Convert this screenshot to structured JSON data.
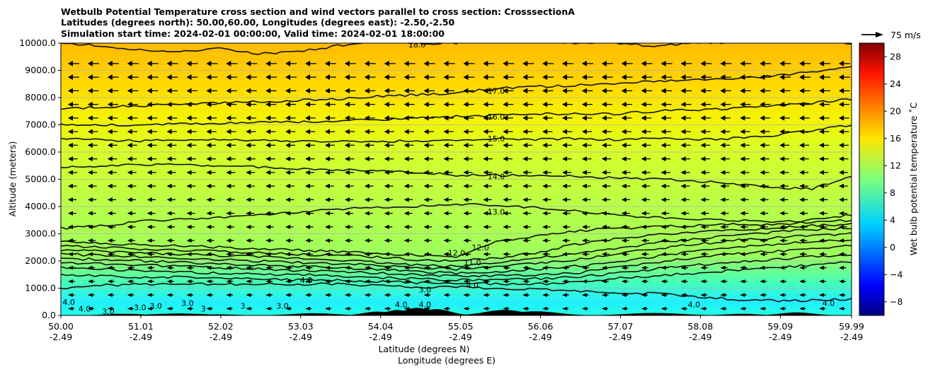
{
  "chart_data": {
    "type": "contour",
    "title_lines": [
      "Wetbulb Potential Temperature cross section and wind vectors parallel to cross section: CrosssectionA",
      "Latitudes (degrees north): 50.00,60.00, Longitudes (degrees east): -2.50,-2.50",
      "Simulation start time: 2024-02-01 00:00:00, Valid time: 2024-02-01 18:00:00"
    ],
    "xlabel_lines": [
      "Latitude (degrees N)",
      "Longitude (degrees E)"
    ],
    "ylabel": "Altitude (meters)",
    "x_ticks": [
      {
        "lat": 50.0,
        "lat_label": "50.00",
        "lon_label": "-2.49"
      },
      {
        "lat": 51.01,
        "lat_label": "51.01",
        "lon_label": "-2.49"
      },
      {
        "lat": 52.02,
        "lat_label": "52.02",
        "lon_label": "-2.49"
      },
      {
        "lat": 53.03,
        "lat_label": "53.03",
        "lon_label": "-2.49"
      },
      {
        "lat": 54.04,
        "lat_label": "54.04",
        "lon_label": "-2.49"
      },
      {
        "lat": 55.05,
        "lat_label": "55.05",
        "lon_label": "-2.49"
      },
      {
        "lat": 56.06,
        "lat_label": "56.06",
        "lon_label": "-2.49"
      },
      {
        "lat": 57.07,
        "lat_label": "57.07",
        "lon_label": "-2.49"
      },
      {
        "lat": 58.08,
        "lat_label": "58.08",
        "lon_label": "-2.49"
      },
      {
        "lat": 59.09,
        "lat_label": "59.09",
        "lon_label": "-2.49"
      },
      {
        "lat": 59.99,
        "lat_label": "59.99",
        "lon_label": "-2.49"
      }
    ],
    "xlim": [
      50.0,
      59.99
    ],
    "y_ticks": [
      0,
      1000,
      2000,
      3000,
      4000,
      5000,
      6000,
      7000,
      8000,
      9000,
      10000
    ],
    "y_tick_labels": [
      "0.0",
      "1000.0",
      "2000.0",
      "3000.0",
      "4000.0",
      "5000.0",
      "6000.0",
      "7000.0",
      "8000.0",
      "9000.0",
      "10000.0"
    ],
    "ylim": [
      0,
      10000
    ],
    "grid": "horizontal",
    "colorbar": {
      "label": "Wet bulb potential temperature ˚C",
      "range": [
        -10,
        30
      ],
      "ticks": [
        -8,
        -4,
        0,
        4,
        8,
        12,
        16,
        20,
        24,
        28
      ],
      "tick_labels": [
        "−8",
        "−4",
        "0",
        "4",
        "8",
        "12",
        "16",
        "20",
        "24",
        "28"
      ],
      "colormap": "jet"
    },
    "quiver_key": {
      "label": "75 m/s",
      "value": 75
    },
    "wind_direction": "toward south (decreasing latitude)",
    "contour_levels": [
      {
        "value": 18,
        "heights_m": [
          10000,
          9900,
          9750,
          9700,
          9800,
          9600,
          9700,
          9900,
          10100,
          10000,
          10000,
          10100,
          10100,
          10000,
          10000,
          9900,
          10000,
          10000,
          10100,
          10100,
          10000
        ]
      },
      {
        "value": 17,
        "heights_m": [
          7600,
          7650,
          7700,
          7750,
          7800,
          7850,
          7900,
          7950,
          8050,
          8100,
          8150,
          8350,
          8400,
          8450,
          8500,
          8600,
          8650,
          8700,
          8800,
          8950,
          9100
        ]
      },
      {
        "value": 16,
        "heights_m": [
          7000,
          7000,
          7000,
          7050,
          7050,
          7100,
          7100,
          7150,
          7200,
          7250,
          7300,
          7350,
          7400,
          7400,
          7400,
          7500,
          7550,
          7600,
          7700,
          7800,
          7950
        ]
      },
      {
        "value": 15,
        "heights_m": [
          6500,
          6450,
          6400,
          6450,
          6450,
          6450,
          6400,
          6400,
          6400,
          6400,
          6450,
          6500,
          6450,
          6500,
          6450,
          6500,
          6450,
          6500,
          6600,
          6800,
          7000
        ]
      },
      {
        "value": 14,
        "heights_m": [
          5450,
          5500,
          5550,
          5550,
          5500,
          5450,
          5400,
          5350,
          5300,
          5250,
          5150,
          5150,
          5150,
          5100,
          5050,
          5000,
          4950,
          4850,
          4700,
          4650,
          5100
        ]
      },
      {
        "value": 13,
        "heights_m": [
          3200,
          3300,
          3450,
          3550,
          3600,
          3700,
          3800,
          3900,
          3950,
          4000,
          4100,
          4050,
          3950,
          3850,
          3700,
          3600,
          3550,
          3500,
          3400,
          3500,
          3700
        ]
      },
      {
        "value": 12,
        "heights_m": [
          2700,
          2650,
          2600,
          2550,
          2500,
          2450,
          2400,
          2350,
          2300,
          2200,
          2150,
          2700,
          2900,
          3100,
          3200,
          3250,
          3300,
          3350,
          3350,
          3400,
          3500
        ]
      },
      {
        "value": 11,
        "heights_m": [
          2550,
          2500,
          2450,
          2400,
          2350,
          2300,
          2250,
          2200,
          2150,
          2050,
          2000,
          2100,
          2300,
          2600,
          2800,
          2950,
          3050,
          3150,
          3200,
          3300,
          3350
        ]
      },
      {
        "value": 10,
        "heights_m": [
          2400,
          2350,
          2300,
          2250,
          2200,
          2150,
          2100,
          2050,
          1950,
          1850,
          1800,
          1950,
          2100,
          2250,
          2450,
          2650,
          2800,
          2950,
          3050,
          3150,
          3200
        ]
      },
      {
        "value": 9,
        "heights_m": [
          2250,
          2200,
          2150,
          2100,
          2050,
          2000,
          1950,
          1900,
          1850,
          1750,
          1700,
          1800,
          1900,
          2050,
          2250,
          2450,
          2600,
          2750,
          2850,
          2950,
          3000
        ]
      },
      {
        "value": 8,
        "heights_m": [
          2100,
          2050,
          2000,
          1950,
          1900,
          1850,
          1800,
          1750,
          1700,
          1600,
          1550,
          1600,
          1700,
          1800,
          1950,
          2150,
          2350,
          2500,
          2600,
          2700,
          2800
        ]
      },
      {
        "value": 7,
        "heights_m": [
          1950,
          1900,
          1850,
          1800,
          1750,
          1700,
          1650,
          1600,
          1550,
          1500,
          1450,
          1450,
          1500,
          1550,
          1750,
          1950,
          2100,
          2250,
          2350,
          2450,
          2550
        ]
      },
      {
        "value": 6,
        "heights_m": [
          1750,
          1700,
          1650,
          1600,
          1550,
          1500,
          1500,
          1450,
          1400,
          1350,
          1300,
          1300,
          1350,
          1400,
          1550,
          1700,
          1850,
          1950,
          2050,
          2150,
          2250
        ]
      },
      {
        "value": 5,
        "heights_m": [
          1500,
          1450,
          1400,
          1400,
          1350,
          1350,
          1300,
          1300,
          1250,
          1200,
          1200,
          1150,
          1150,
          1200,
          1350,
          1450,
          1550,
          1650,
          1750,
          1850,
          1950
        ]
      },
      {
        "value": 4,
        "heights_m": [
          1000,
          1100,
          1150,
          1150,
          1150,
          1150,
          1150,
          1150,
          1100,
          1050,
          1050,
          1000,
          950,
          900,
          850,
          800,
          700,
          600,
          550,
          550,
          600
        ]
      }
    ],
    "contour_labels": [
      {
        "text": "18.0",
        "lat": 54.5,
        "alt": 9950
      },
      {
        "text": "17.0",
        "lat": 55.5,
        "alt": 8250
      },
      {
        "text": "16.0",
        "lat": 55.5,
        "alt": 7300
      },
      {
        "text": "15.0",
        "lat": 55.5,
        "alt": 6500
      },
      {
        "text": "14.0",
        "lat": 55.5,
        "alt": 5100
      },
      {
        "text": "13.0",
        "lat": 55.5,
        "alt": 3800
      },
      {
        "text": "12.0",
        "lat": 55.3,
        "alt": 2500
      },
      {
        "text": "12.0",
        "lat": 55.0,
        "alt": 2300
      },
      {
        "text": "11.0",
        "lat": 55.2,
        "alt": 1950
      },
      {
        "text": "4.0",
        "lat": 53.1,
        "alt": 1300
      },
      {
        "text": "4.0",
        "lat": 55.2,
        "alt": 1100
      },
      {
        "text": "3.0",
        "lat": 54.6,
        "alt": 950
      },
      {
        "text": "4.0",
        "lat": 54.3,
        "alt": 400
      },
      {
        "text": "4.0",
        "lat": 54.6,
        "alt": 400
      },
      {
        "text": "4.0",
        "lat": 58.0,
        "alt": 400
      },
      {
        "text": "4.0",
        "lat": 59.7,
        "alt": 450
      },
      {
        "text": "4.0",
        "lat": 50.1,
        "alt": 500
      },
      {
        "text": "4.0",
        "lat": 50.3,
        "alt": 250
      },
      {
        "text": "3.0",
        "lat": 50.6,
        "alt": 150
      },
      {
        "text": "3.0",
        "lat": 51.0,
        "alt": 300
      },
      {
        "text": "3.0",
        "lat": 51.2,
        "alt": 350
      },
      {
        "text": "3.0",
        "lat": 51.6,
        "alt": 450
      },
      {
        "text": "3",
        "lat": 51.8,
        "alt": 250
      },
      {
        "text": "3",
        "lat": 52.3,
        "alt": 350
      },
      {
        "text": "3.0",
        "lat": 52.8,
        "alt": 350
      }
    ]
  }
}
